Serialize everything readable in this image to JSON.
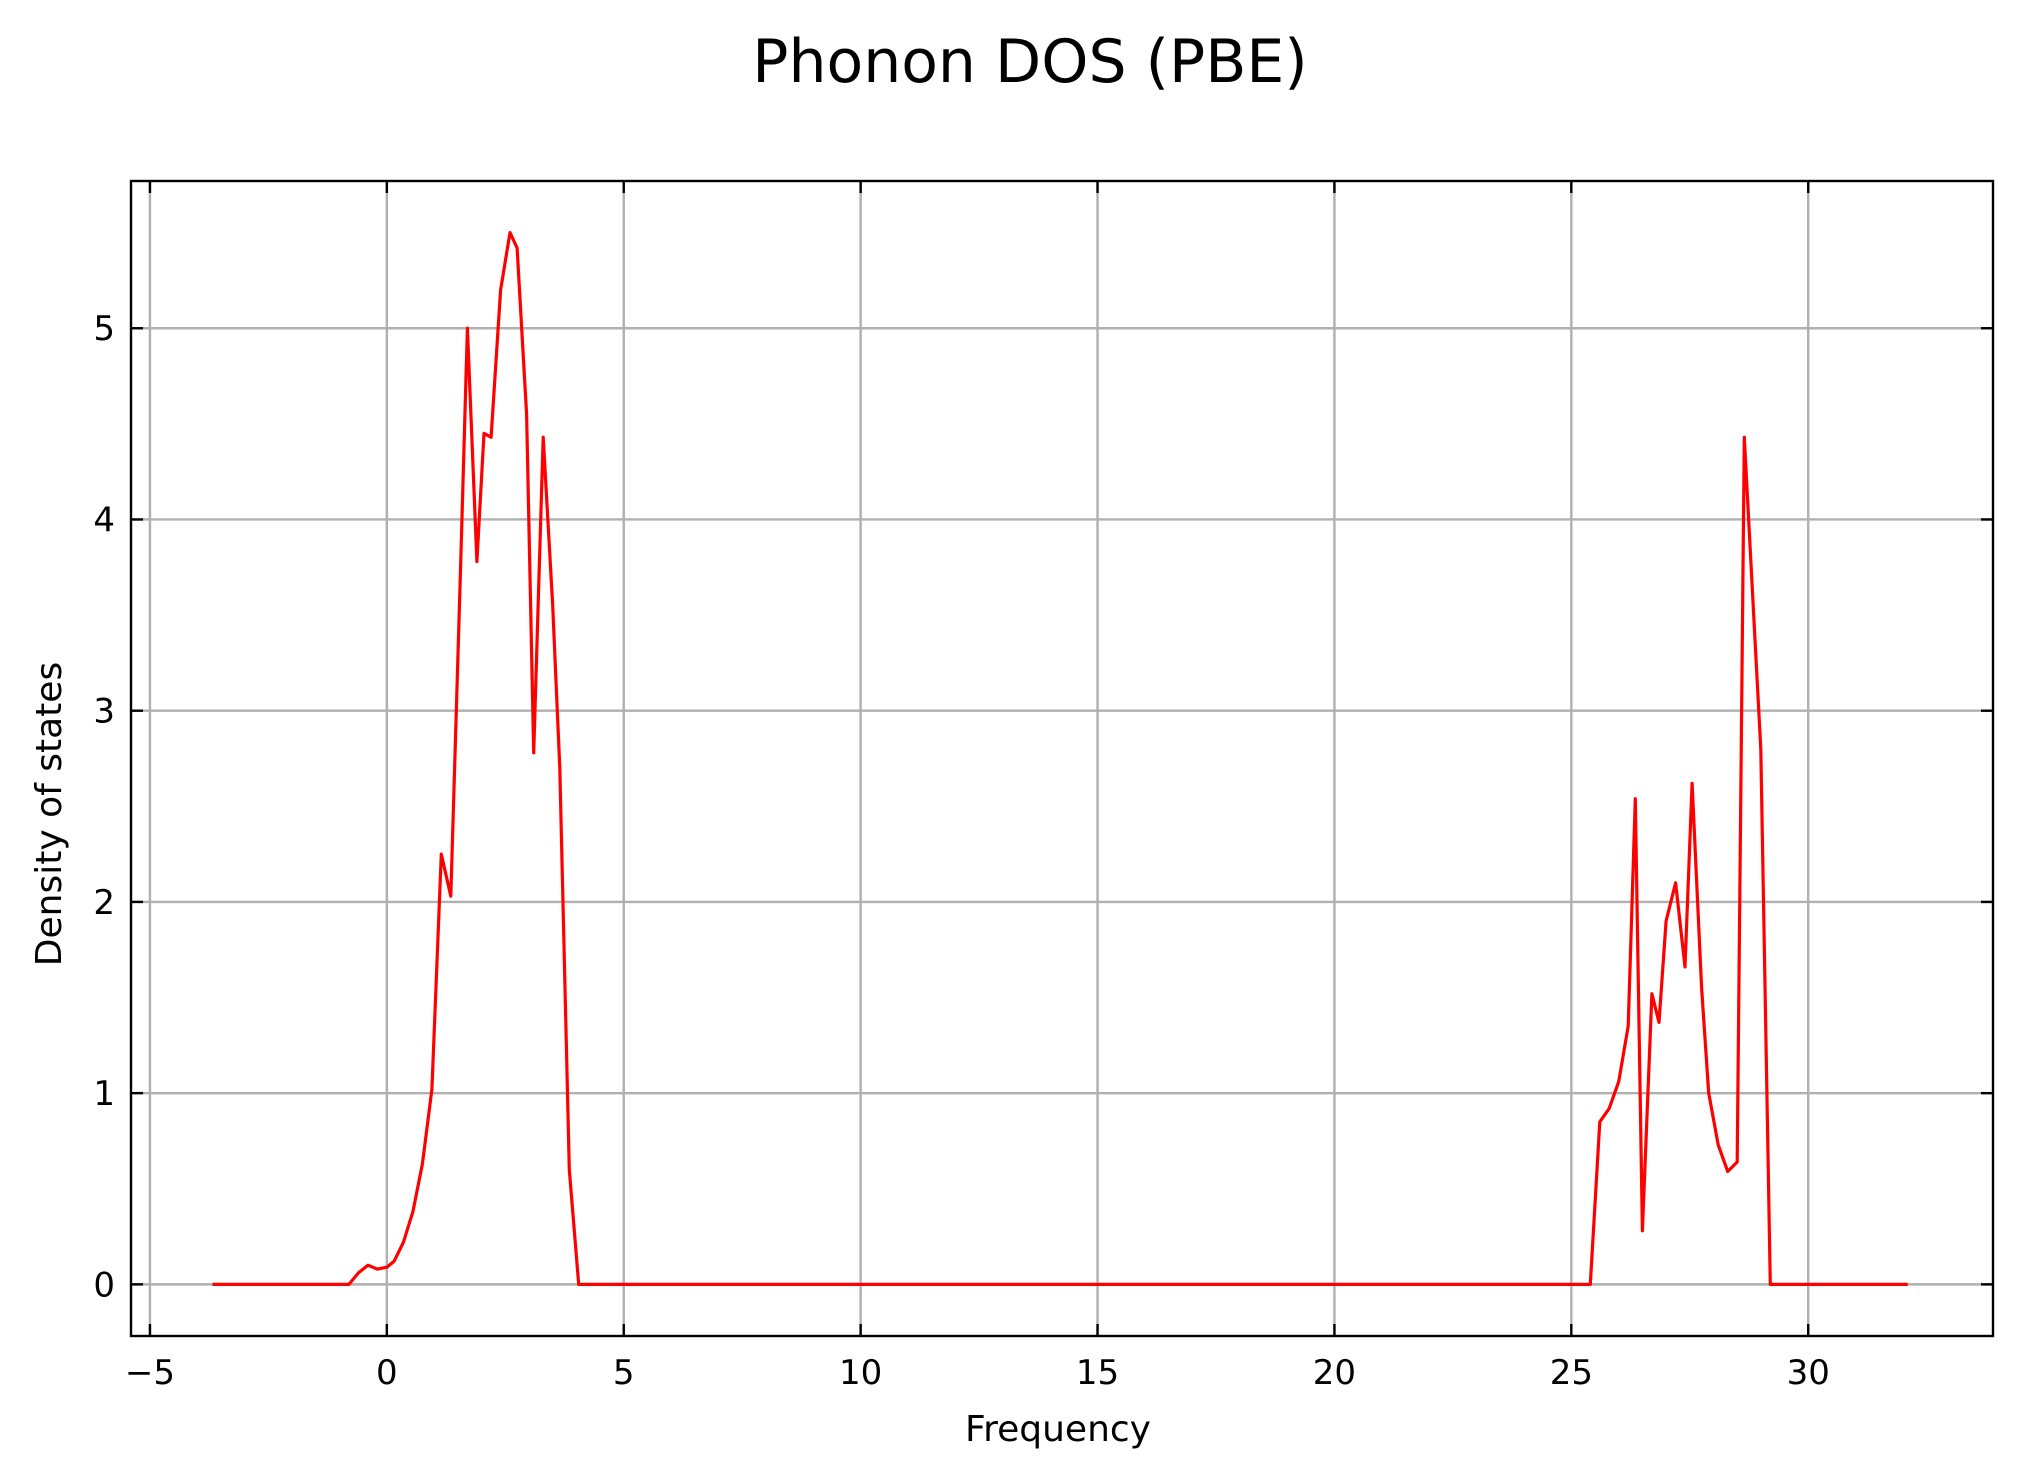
{
  "chart_data": {
    "type": "line",
    "title": "Phonon DOS (PBE)",
    "xlabel": "Frequency",
    "ylabel": "Density of states",
    "xlim": [
      -5.4,
      33.9
    ],
    "ylim": [
      -0.27,
      5.77
    ],
    "xticks": [
      -5,
      0,
      5,
      10,
      15,
      20,
      25,
      30
    ],
    "xtick_labels": [
      "−5",
      "0",
      "5",
      "10",
      "15",
      "20",
      "25",
      "30"
    ],
    "yticks": [
      0,
      1,
      2,
      3,
      4,
      5
    ],
    "ytick_labels": [
      "0",
      "1",
      "2",
      "3",
      "4",
      "5"
    ],
    "grid": true,
    "tick_direction": "in",
    "series": [
      {
        "color": "#ff0000",
        "x": [
          -3.68,
          -1.5,
          -0.8,
          -0.6,
          -0.4,
          -0.2,
          0.0,
          0.15,
          0.35,
          0.55,
          0.75,
          0.95,
          1.15,
          1.35,
          1.55,
          1.7,
          1.9,
          2.05,
          2.2,
          2.4,
          2.6,
          2.75,
          2.95,
          3.1,
          3.3,
          3.5,
          3.65,
          3.85,
          4.05,
          10.0,
          20.0,
          25.4,
          25.6,
          25.8,
          26.0,
          26.2,
          26.35,
          26.5,
          26.7,
          26.85,
          27.0,
          27.2,
          27.4,
          27.55,
          27.75,
          27.9,
          28.1,
          28.3,
          28.5,
          28.65,
          28.85,
          29.0,
          29.2,
          30.5,
          32.1
        ],
        "y": [
          0.0,
          0.0,
          0.0,
          0.06,
          0.1,
          0.08,
          0.09,
          0.12,
          0.22,
          0.38,
          0.63,
          1.02,
          2.25,
          2.03,
          3.7,
          5.0,
          3.78,
          4.45,
          4.43,
          5.2,
          5.5,
          5.42,
          4.55,
          2.78,
          4.43,
          3.55,
          2.7,
          0.6,
          0.0,
          0.0,
          0.0,
          0.0,
          0.85,
          0.92,
          1.06,
          1.35,
          2.54,
          0.28,
          1.52,
          1.37,
          1.9,
          2.1,
          1.66,
          2.62,
          1.55,
          1.0,
          0.73,
          0.59,
          0.64,
          4.43,
          3.5,
          2.8,
          0.0,
          0.0,
          0.0
        ]
      }
    ]
  }
}
